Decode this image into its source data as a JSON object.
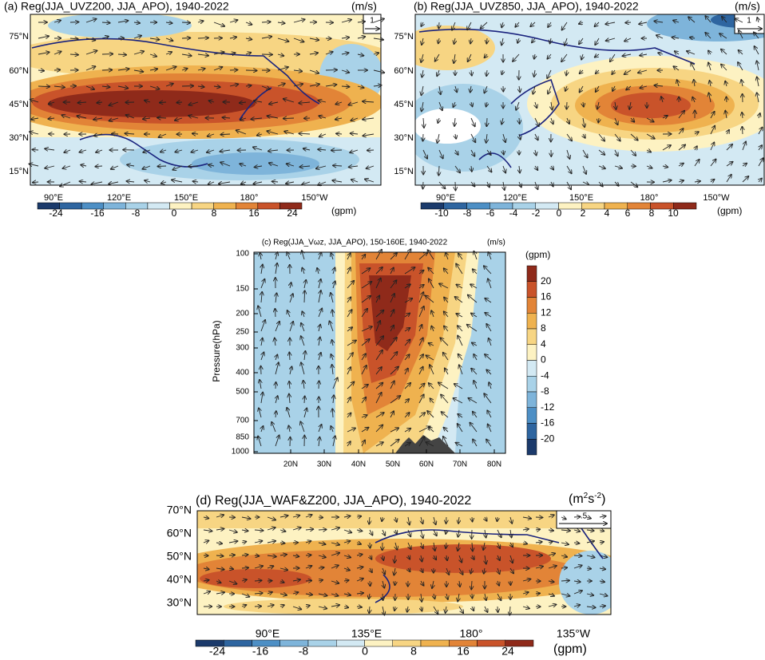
{
  "panels": [
    {
      "title": "(a) Reg(JJA_UVZ200, JJA_APO), 1940-2022",
      "unit": "(m/s)",
      "ref_vector": "1",
      "lat_labels": [
        "75°N",
        "60°N",
        "45°N",
        "30°N",
        "15°N"
      ],
      "lon_labels": [
        "90°E",
        "120°E",
        "150°E",
        "180°",
        "150°W"
      ],
      "colorbar": {
        "labels": [
          "-24",
          "-16",
          "-8",
          "0",
          "8",
          "16",
          "24"
        ],
        "unit": "(gpm)"
      }
    },
    {
      "title": "(b) Reg(JJA_UVZ850, JJA_APO), 1940-2022",
      "unit": "(m/s)",
      "ref_vector": "1",
      "lat_labels": [
        "75°N",
        "60°N",
        "45°N",
        "30°N",
        "15°N"
      ],
      "lon_labels": [
        "90°E",
        "120°E",
        "150°E",
        "180°",
        "150°W"
      ],
      "colorbar": {
        "labels": [
          "-10",
          "-8",
          "-6",
          "-4",
          "-2",
          "0",
          "2",
          "4",
          "6",
          "8",
          "10"
        ],
        "unit": "(gpm)"
      }
    },
    {
      "title": "(c) Reg(JJA_Vωz, JJA_APO), 150-160E, 1940-2022",
      "unit": "(m/s)",
      "y_axis_title": "Pressure(hPa)",
      "y_labels": [
        "100",
        "150",
        "200",
        "250",
        "300",
        "400",
        "500",
        "700",
        "850",
        "1000"
      ],
      "x_labels": [
        "20N",
        "30N",
        "40N",
        "50N",
        "60N",
        "70N",
        "80N"
      ],
      "colorbar": {
        "labels": [
          "20",
          "16",
          "12",
          "8",
          "4",
          "0",
          "-4",
          "-8",
          "-12",
          "-16",
          "-20"
        ],
        "unit": "(gpm)"
      }
    },
    {
      "title": "(d) Reg(JJA_WAF&Z200, JJA_APO), 1940-2022",
      "unit_parts": [
        "(m",
        "2",
        "s",
        "-2",
        ")"
      ],
      "ref_vector": ".5",
      "lat_labels": [
        "70°N",
        "60°N",
        "50°N",
        "40°N",
        "30°N"
      ],
      "lon_labels": [
        "90°E",
        "135°E",
        "180°",
        "135°W"
      ],
      "colorbar": {
        "labels": [
          "-24",
          "-16",
          "-8",
          "0",
          "8",
          "16",
          "24"
        ],
        "unit": "(gpm)"
      }
    }
  ]
}
